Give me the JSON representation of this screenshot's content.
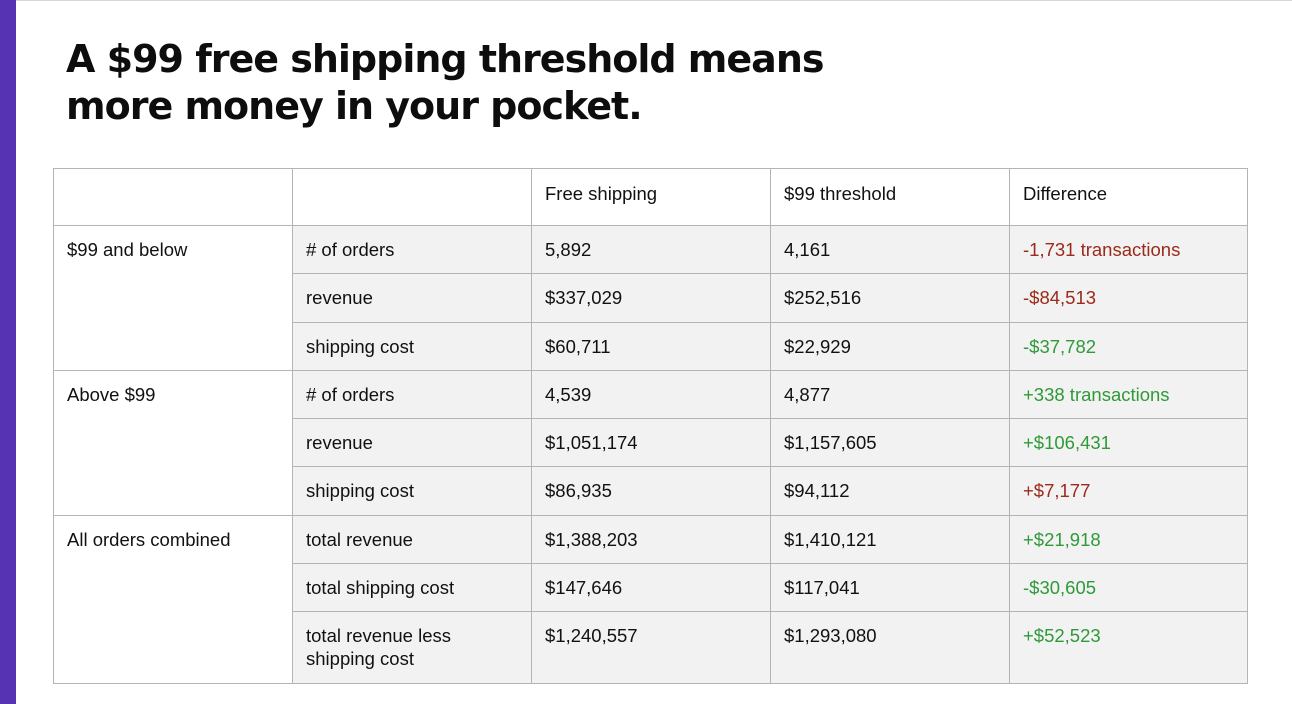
{
  "headline": {
    "line1": "A $99 free shipping threshold means",
    "line2": "more money in your pocket."
  },
  "colors": {
    "accent": "#5533b3",
    "negative": "#9b2a1a",
    "positive": "#2f9a39",
    "row_fill": "#f2f2f2",
    "border": "#b4b4b4"
  },
  "table": {
    "headers": [
      "",
      "",
      "Free shipping",
      "$99 threshold",
      "Difference"
    ],
    "groups": [
      {
        "label": "$99 and below",
        "rows": [
          {
            "metric": "# of orders",
            "free": "5,892",
            "threshold": "4,161",
            "diff": "-1,731 transactions",
            "tone": "neg"
          },
          {
            "metric": "revenue",
            "free": "$337,029",
            "threshold": "$252,516",
            "diff": "-$84,513",
            "tone": "neg"
          },
          {
            "metric": "shipping cost",
            "free": "$60,711",
            "threshold": "$22,929",
            "diff": "-$37,782",
            "tone": "pos"
          }
        ]
      },
      {
        "label": "Above $99",
        "rows": [
          {
            "metric": "# of orders",
            "free": "4,539",
            "threshold": "4,877",
            "diff": "+338 transactions",
            "tone": "pos"
          },
          {
            "metric": "revenue",
            "free": "$1,051,174",
            "threshold": "$1,157,605",
            "diff": "+$106,431",
            "tone": "pos"
          },
          {
            "metric": "shipping cost",
            "free": "$86,935",
            "threshold": "$94,112",
            "diff": "+$7,177",
            "tone": "neg"
          }
        ]
      },
      {
        "label": "All orders combined",
        "rows": [
          {
            "metric": "total revenue",
            "free": "$1,388,203",
            "threshold": "$1,410,121",
            "diff": "+$21,918",
            "tone": "pos"
          },
          {
            "metric": "total shipping cost",
            "free": "$147,646",
            "threshold": "$117,041",
            "diff": "-$30,605",
            "tone": "pos"
          },
          {
            "metric": "total revenue less shipping cost",
            "metric_line1": "total revenue less",
            "metric_line2": "shipping cost",
            "free": "$1,240,557",
            "threshold": "$1,293,080",
            "diff": "+$52,523",
            "tone": "pos"
          }
        ]
      }
    ]
  }
}
